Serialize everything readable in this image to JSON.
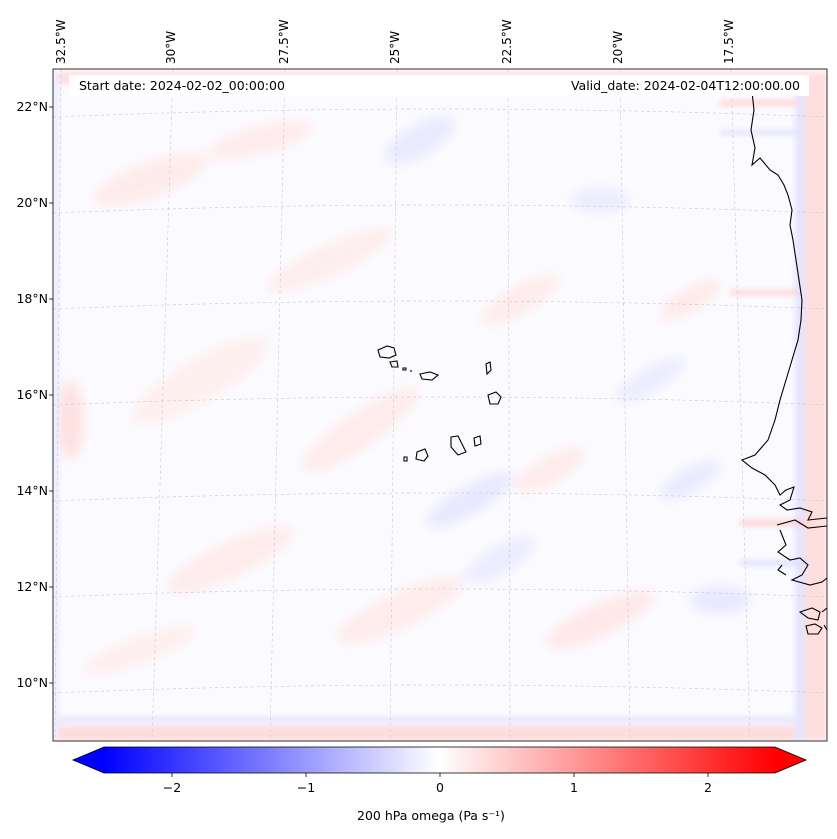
{
  "map": {
    "header": {
      "start_date": "Start date: 2024-02-02_00:00:00",
      "valid_date": "Valid_date: 2024-02-04T12:00:00.00"
    },
    "longitude_labels": [
      "32.5°W",
      "30°W",
      "27.5°W",
      "25°W",
      "22.5°W",
      "20°W",
      "17.5°W"
    ],
    "latitude_labels": [
      "22°N",
      "20°N",
      "18°N",
      "16°N",
      "14°N",
      "12°N",
      "10°N"
    ],
    "colorbar": {
      "label": "200 hPa omega (Pa s⁻¹)",
      "ticks": [
        "−2",
        "−1",
        "0",
        "1",
        "2"
      ],
      "range": [
        -2.6,
        2.6
      ],
      "colors": {
        "negative": "#0000ff",
        "zero": "#ffffff",
        "positive": "#ff0000"
      },
      "extend": "both"
    },
    "features": [
      "Cabo Verde islands",
      "West African coastline (Senegal, Gambia, Guinea-Bissau)"
    ]
  }
}
